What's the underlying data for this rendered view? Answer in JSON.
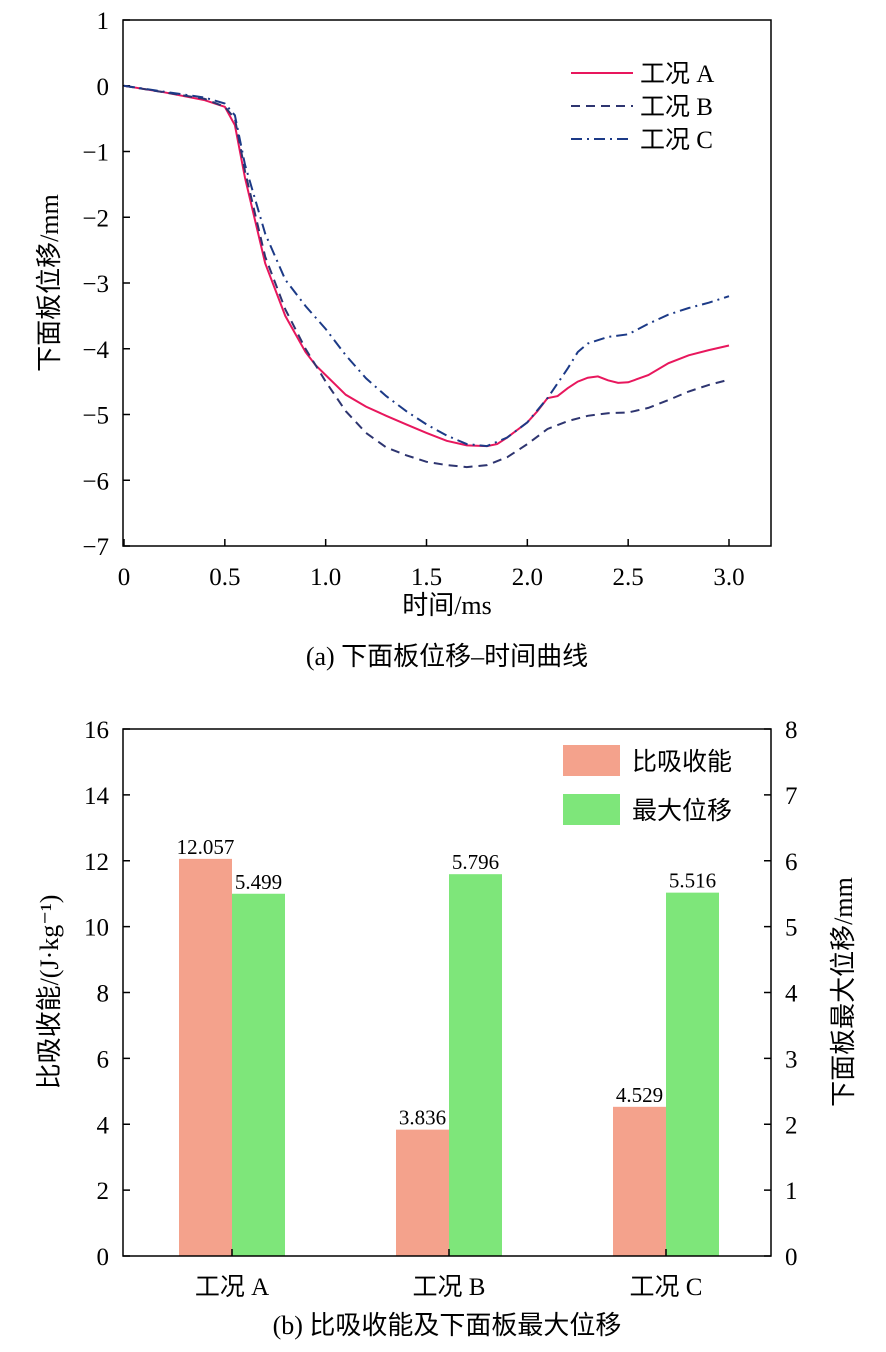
{
  "chart_data": [
    {
      "type": "line",
      "caption": "(a) 下面板位移–时间曲线",
      "xlabel": "时间/ms",
      "ylabel": "下面板位移/mm",
      "xlim": [
        0,
        3.2
      ],
      "ylim": [
        -7,
        1
      ],
      "x_ticks": [
        0,
        0.5,
        1.0,
        1.5,
        2.0,
        2.5,
        3.0
      ],
      "x_tick_labels": [
        "0",
        "0.5",
        "1.0",
        "1.5",
        "2.0",
        "2.5",
        "3.0"
      ],
      "y_ticks": [
        1,
        0,
        -1,
        -2,
        -3,
        -4,
        -5,
        -6,
        -7
      ],
      "y_tick_labels": [
        "1",
        "0",
        "−1",
        "−2",
        "−3",
        "−4",
        "−5",
        "−6",
        "−7"
      ],
      "grid": false,
      "legend_position": "top-right",
      "series": [
        {
          "name": "工况 A",
          "color": "#e8175d",
          "dash": "solid",
          "x": [
            0,
            0.2,
            0.4,
            0.5,
            0.55,
            0.6,
            0.7,
            0.8,
            0.9,
            0.95,
            1.0,
            1.1,
            1.2,
            1.3,
            1.4,
            1.5,
            1.6,
            1.7,
            1.8,
            1.85,
            1.9,
            2.0,
            2.05,
            2.1,
            2.15,
            2.2,
            2.25,
            2.3,
            2.35,
            2.4,
            2.45,
            2.5,
            2.6,
            2.7,
            2.8,
            2.9,
            3.0
          ],
          "y": [
            0,
            -0.1,
            -0.22,
            -0.32,
            -0.6,
            -1.4,
            -2.7,
            -3.5,
            -4.05,
            -4.25,
            -4.4,
            -4.7,
            -4.88,
            -5.02,
            -5.15,
            -5.28,
            -5.4,
            -5.47,
            -5.48,
            -5.45,
            -5.35,
            -5.12,
            -4.95,
            -4.75,
            -4.72,
            -4.6,
            -4.5,
            -4.44,
            -4.42,
            -4.48,
            -4.52,
            -4.51,
            -4.4,
            -4.22,
            -4.1,
            -4.02,
            -3.95
          ]
        },
        {
          "name": "工况 B",
          "color": "#2e3570",
          "dash": "dashed",
          "x": [
            0,
            0.2,
            0.4,
            0.5,
            0.55,
            0.6,
            0.7,
            0.8,
            0.9,
            1.0,
            1.1,
            1.2,
            1.3,
            1.4,
            1.5,
            1.6,
            1.7,
            1.8,
            1.9,
            2.0,
            2.1,
            2.2,
            2.3,
            2.4,
            2.5,
            2.6,
            2.7,
            2.8,
            2.9,
            3.0
          ],
          "y": [
            0,
            -0.1,
            -0.2,
            -0.32,
            -0.5,
            -1.3,
            -2.6,
            -3.4,
            -4.0,
            -4.5,
            -4.95,
            -5.28,
            -5.5,
            -5.62,
            -5.72,
            -5.77,
            -5.8,
            -5.77,
            -5.65,
            -5.45,
            -5.22,
            -5.1,
            -5.02,
            -4.98,
            -4.97,
            -4.9,
            -4.78,
            -4.65,
            -4.55,
            -4.47
          ]
        },
        {
          "name": "工况 C",
          "color": "#1c3a87",
          "dash": "dashdot",
          "x": [
            0,
            0.2,
            0.4,
            0.5,
            0.55,
            0.6,
            0.7,
            0.8,
            0.9,
            1.0,
            1.1,
            1.2,
            1.3,
            1.4,
            1.5,
            1.6,
            1.7,
            1.8,
            1.9,
            2.0,
            2.1,
            2.2,
            2.25,
            2.3,
            2.4,
            2.5,
            2.6,
            2.7,
            2.8,
            2.9,
            3.0
          ],
          "y": [
            0,
            -0.09,
            -0.18,
            -0.27,
            -0.45,
            -1.2,
            -2.25,
            -2.95,
            -3.35,
            -3.7,
            -4.1,
            -4.45,
            -4.72,
            -4.95,
            -5.15,
            -5.32,
            -5.45,
            -5.48,
            -5.35,
            -5.12,
            -4.75,
            -4.3,
            -4.05,
            -3.92,
            -3.82,
            -3.78,
            -3.62,
            -3.48,
            -3.38,
            -3.3,
            -3.2
          ]
        }
      ]
    },
    {
      "type": "bar",
      "caption": "(b) 比吸收能及下面板最大位移",
      "categories": [
        "工况 A",
        "工况 B",
        "工况 C"
      ],
      "ylabel_left": "比吸收能/(J·kg⁻¹)",
      "ylabel_right": "下面板最大位移/mm",
      "ylim_left": [
        0,
        16
      ],
      "ylim_right": [
        0,
        8
      ],
      "y_ticks_left": [
        0,
        2,
        4,
        6,
        8,
        10,
        12,
        14,
        16
      ],
      "y_ticks_right": [
        0,
        1,
        2,
        3,
        4,
        5,
        6,
        7,
        8
      ],
      "grid": false,
      "legend_position": "top-right",
      "series": [
        {
          "name": "比吸收能",
          "axis": "left",
          "color": "#f4a28c",
          "values": [
            12.057,
            3.836,
            4.529
          ],
          "labels": [
            "12.057",
            "3.836",
            "4.529"
          ]
        },
        {
          "name": "最大位移",
          "axis": "right",
          "color": "#7ee67a",
          "values": [
            5.499,
            5.796,
            5.516
          ],
          "labels": [
            "5.499",
            "5.796",
            "5.516"
          ]
        }
      ]
    }
  ]
}
